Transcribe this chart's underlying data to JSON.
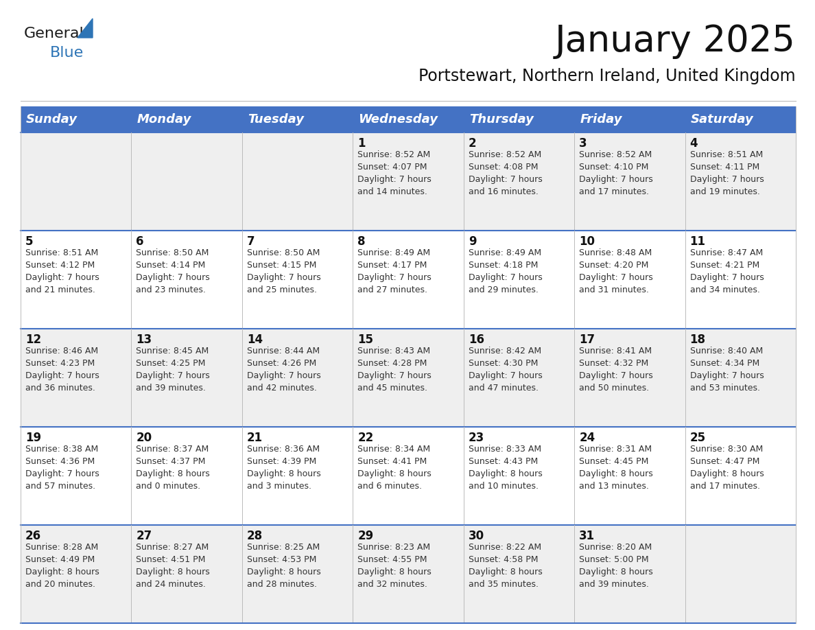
{
  "title": "January 2025",
  "subtitle": "Portstewart, Northern Ireland, United Kingdom",
  "header_bg": "#4472C4",
  "header_text_color": "#FFFFFF",
  "cell_bg_week1": "#EFEFEF",
  "cell_bg_week2": "#FFFFFF",
  "cell_bg_week3": "#EFEFEF",
  "cell_bg_week4": "#FFFFFF",
  "cell_bg_week5": "#EFEFEF",
  "day_names": [
    "Sunday",
    "Monday",
    "Tuesday",
    "Wednesday",
    "Thursday",
    "Friday",
    "Saturday"
  ],
  "header_fontsize": 13,
  "title_fontsize": 38,
  "subtitle_fontsize": 17,
  "day_num_fontsize": 12,
  "cell_fontsize": 9,
  "logo_general_color": "#1a1a1a",
  "logo_blue_color": "#2E75B6",
  "grid_line_color": "#BBBBBB",
  "border_line_color": "#4472C4",
  "weeks": [
    [
      {
        "day": "",
        "info": ""
      },
      {
        "day": "",
        "info": ""
      },
      {
        "day": "",
        "info": ""
      },
      {
        "day": "1",
        "info": "Sunrise: 8:52 AM\nSunset: 4:07 PM\nDaylight: 7 hours\nand 14 minutes."
      },
      {
        "day": "2",
        "info": "Sunrise: 8:52 AM\nSunset: 4:08 PM\nDaylight: 7 hours\nand 16 minutes."
      },
      {
        "day": "3",
        "info": "Sunrise: 8:52 AM\nSunset: 4:10 PM\nDaylight: 7 hours\nand 17 minutes."
      },
      {
        "day": "4",
        "info": "Sunrise: 8:51 AM\nSunset: 4:11 PM\nDaylight: 7 hours\nand 19 minutes."
      }
    ],
    [
      {
        "day": "5",
        "info": "Sunrise: 8:51 AM\nSunset: 4:12 PM\nDaylight: 7 hours\nand 21 minutes."
      },
      {
        "day": "6",
        "info": "Sunrise: 8:50 AM\nSunset: 4:14 PM\nDaylight: 7 hours\nand 23 minutes."
      },
      {
        "day": "7",
        "info": "Sunrise: 8:50 AM\nSunset: 4:15 PM\nDaylight: 7 hours\nand 25 minutes."
      },
      {
        "day": "8",
        "info": "Sunrise: 8:49 AM\nSunset: 4:17 PM\nDaylight: 7 hours\nand 27 minutes."
      },
      {
        "day": "9",
        "info": "Sunrise: 8:49 AM\nSunset: 4:18 PM\nDaylight: 7 hours\nand 29 minutes."
      },
      {
        "day": "10",
        "info": "Sunrise: 8:48 AM\nSunset: 4:20 PM\nDaylight: 7 hours\nand 31 minutes."
      },
      {
        "day": "11",
        "info": "Sunrise: 8:47 AM\nSunset: 4:21 PM\nDaylight: 7 hours\nand 34 minutes."
      }
    ],
    [
      {
        "day": "12",
        "info": "Sunrise: 8:46 AM\nSunset: 4:23 PM\nDaylight: 7 hours\nand 36 minutes."
      },
      {
        "day": "13",
        "info": "Sunrise: 8:45 AM\nSunset: 4:25 PM\nDaylight: 7 hours\nand 39 minutes."
      },
      {
        "day": "14",
        "info": "Sunrise: 8:44 AM\nSunset: 4:26 PM\nDaylight: 7 hours\nand 42 minutes."
      },
      {
        "day": "15",
        "info": "Sunrise: 8:43 AM\nSunset: 4:28 PM\nDaylight: 7 hours\nand 45 minutes."
      },
      {
        "day": "16",
        "info": "Sunrise: 8:42 AM\nSunset: 4:30 PM\nDaylight: 7 hours\nand 47 minutes."
      },
      {
        "day": "17",
        "info": "Sunrise: 8:41 AM\nSunset: 4:32 PM\nDaylight: 7 hours\nand 50 minutes."
      },
      {
        "day": "18",
        "info": "Sunrise: 8:40 AM\nSunset: 4:34 PM\nDaylight: 7 hours\nand 53 minutes."
      }
    ],
    [
      {
        "day": "19",
        "info": "Sunrise: 8:38 AM\nSunset: 4:36 PM\nDaylight: 7 hours\nand 57 minutes."
      },
      {
        "day": "20",
        "info": "Sunrise: 8:37 AM\nSunset: 4:37 PM\nDaylight: 8 hours\nand 0 minutes."
      },
      {
        "day": "21",
        "info": "Sunrise: 8:36 AM\nSunset: 4:39 PM\nDaylight: 8 hours\nand 3 minutes."
      },
      {
        "day": "22",
        "info": "Sunrise: 8:34 AM\nSunset: 4:41 PM\nDaylight: 8 hours\nand 6 minutes."
      },
      {
        "day": "23",
        "info": "Sunrise: 8:33 AM\nSunset: 4:43 PM\nDaylight: 8 hours\nand 10 minutes."
      },
      {
        "day": "24",
        "info": "Sunrise: 8:31 AM\nSunset: 4:45 PM\nDaylight: 8 hours\nand 13 minutes."
      },
      {
        "day": "25",
        "info": "Sunrise: 8:30 AM\nSunset: 4:47 PM\nDaylight: 8 hours\nand 17 minutes."
      }
    ],
    [
      {
        "day": "26",
        "info": "Sunrise: 8:28 AM\nSunset: 4:49 PM\nDaylight: 8 hours\nand 20 minutes."
      },
      {
        "day": "27",
        "info": "Sunrise: 8:27 AM\nSunset: 4:51 PM\nDaylight: 8 hours\nand 24 minutes."
      },
      {
        "day": "28",
        "info": "Sunrise: 8:25 AM\nSunset: 4:53 PM\nDaylight: 8 hours\nand 28 minutes."
      },
      {
        "day": "29",
        "info": "Sunrise: 8:23 AM\nSunset: 4:55 PM\nDaylight: 8 hours\nand 32 minutes."
      },
      {
        "day": "30",
        "info": "Sunrise: 8:22 AM\nSunset: 4:58 PM\nDaylight: 8 hours\nand 35 minutes."
      },
      {
        "day": "31",
        "info": "Sunrise: 8:20 AM\nSunset: 5:00 PM\nDaylight: 8 hours\nand 39 minutes."
      },
      {
        "day": "",
        "info": ""
      }
    ]
  ]
}
